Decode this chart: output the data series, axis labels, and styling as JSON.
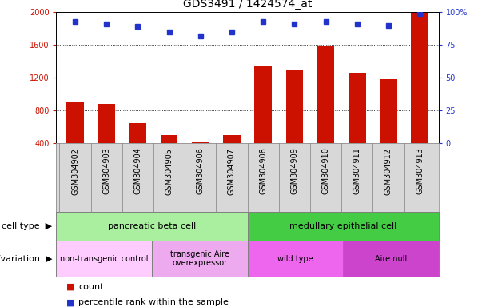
{
  "title": "GDS3491 / 1424574_at",
  "samples": [
    "GSM304902",
    "GSM304903",
    "GSM304904",
    "GSM304905",
    "GSM304906",
    "GSM304907",
    "GSM304908",
    "GSM304909",
    "GSM304910",
    "GSM304911",
    "GSM304912",
    "GSM304913"
  ],
  "counts": [
    900,
    875,
    645,
    490,
    415,
    490,
    1340,
    1300,
    1590,
    1255,
    1180,
    2020
  ],
  "percentiles": [
    93,
    91,
    89,
    85,
    82,
    85,
    93,
    91,
    93,
    91,
    90,
    99
  ],
  "ylim_left": [
    400,
    2000
  ],
  "ylim_right": [
    0,
    100
  ],
  "yticks_left": [
    400,
    800,
    1200,
    1600,
    2000
  ],
  "yticks_right": [
    0,
    25,
    50,
    75,
    100
  ],
  "bar_color": "#cc1100",
  "dot_color": "#2233cc",
  "cell_types": [
    {
      "label": "pancreatic beta cell",
      "start": 0,
      "end": 6,
      "color": "#aaeea0"
    },
    {
      "label": "medullary epithelial cell",
      "start": 6,
      "end": 12,
      "color": "#44cc44"
    }
  ],
  "genotypes": [
    {
      "label": "non-transgenic control",
      "start": 0,
      "end": 3,
      "color": "#ffccff"
    },
    {
      "label": "transgenic Aire\noverexpressor",
      "start": 3,
      "end": 6,
      "color": "#eeaaee"
    },
    {
      "label": "wild type",
      "start": 6,
      "end": 9,
      "color": "#ee66ee"
    },
    {
      "label": "Aire null",
      "start": 9,
      "end": 12,
      "color": "#cc44cc"
    }
  ],
  "legend_count_label": "count",
  "legend_pct_label": "percentile rank within the sample",
  "cell_type_label": "cell type",
  "genotype_label": "genotype/variation",
  "grid_yticks": [
    800,
    1200,
    1600
  ],
  "title_fontsize": 10,
  "tick_label_fontsize": 7,
  "row_label_fontsize": 8,
  "genotype_fontsize": 7,
  "xtick_bg": "#d8d8d8"
}
